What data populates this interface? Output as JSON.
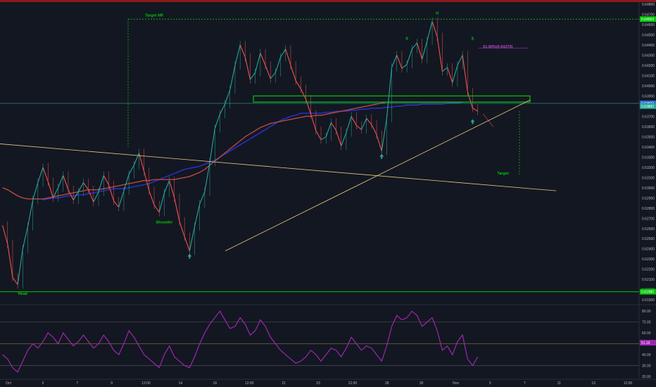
{
  "chart_data": {
    "type": "line",
    "title": "",
    "price_axis": {
      "ticks": [
        "0.64800",
        "0.64700",
        "0.64600",
        "0.64500",
        "0.64400",
        "0.64300",
        "0.64200",
        "0.64100",
        "0.64000",
        "0.63900",
        "0.63800",
        "0.63700",
        "0.63600",
        "0.63500",
        "0.63400",
        "0.63300",
        "0.63200",
        "0.63100",
        "0.63000",
        "0.62900",
        "0.62800",
        "0.62700",
        "0.62600",
        "0.62500",
        "0.62400",
        "0.62300",
        "0.62200",
        "0.62100",
        "0.62000",
        "0.61900"
      ],
      "range": [
        0.6186,
        0.6482
      ],
      "badges": [
        {
          "value": 0.64653,
          "label": "0.64653",
          "color": "#00c805"
        },
        {
          "value": 0.63827,
          "label": "0.63827",
          "color": "#2f6fd0"
        },
        {
          "value": 0.638,
          "label": "0.63800",
          "color": "#26a69a"
        },
        {
          "value": 0.6198,
          "label": "0.61980",
          "color": "#00c805"
        }
      ]
    },
    "time_axis": {
      "labels": [
        "Oct",
        "3",
        "7",
        "9",
        "12:00",
        "14",
        "16",
        "12:00",
        "21",
        "23",
        "12:00",
        "28",
        "30",
        "Nov",
        "5",
        "7",
        "11",
        "13",
        "12:00"
      ]
    },
    "price_series": [
      {
        "name": "price",
        "color": "#26a69a",
        "values": [
          0.6263,
          0.6245,
          0.6212,
          0.6205,
          0.624,
          0.6262,
          0.6288,
          0.6305,
          0.632,
          0.6306,
          0.629,
          0.63,
          0.6312,
          0.6298,
          0.6288,
          0.6296,
          0.6305,
          0.6298,
          0.6286,
          0.6296,
          0.6312,
          0.6303,
          0.6287,
          0.6281,
          0.6297,
          0.6313,
          0.6322,
          0.6334,
          0.6316,
          0.6297,
          0.6283,
          0.6276,
          0.6295,
          0.6307,
          0.629,
          0.6267,
          0.6252,
          0.6238,
          0.6262,
          0.6284,
          0.6296,
          0.6325,
          0.6358,
          0.6372,
          0.6382,
          0.6396,
          0.642,
          0.644,
          0.6428,
          0.6406,
          0.6413,
          0.6432,
          0.642,
          0.6407,
          0.6413,
          0.6428,
          0.6436,
          0.642,
          0.6405,
          0.6397,
          0.6387,
          0.6372,
          0.6356,
          0.6347,
          0.635,
          0.6364,
          0.6356,
          0.6341,
          0.6354,
          0.637,
          0.6361,
          0.6357,
          0.6368,
          0.6362,
          0.6352,
          0.6336,
          0.6368,
          0.6418,
          0.643,
          0.6417,
          0.6421,
          0.6436,
          0.6442,
          0.6426,
          0.6444,
          0.6463,
          0.6448,
          0.6414,
          0.6418,
          0.6403,
          0.642,
          0.643,
          0.6394,
          0.6378,
          0.6375
        ]
      },
      {
        "name": "ma-fast",
        "color": "#2a33d6",
        "values": [
          null,
          null,
          null,
          null,
          null,
          null,
          null,
          null,
          0.6288,
          0.6289,
          0.629,
          0.629,
          0.6291,
          0.6292,
          0.6292,
          0.6293,
          0.6293,
          0.6294,
          0.6295,
          0.6296,
          0.6297,
          0.6298,
          0.6299,
          0.6299,
          0.6299,
          0.63,
          0.6301,
          0.6302,
          0.6303,
          0.6304,
          0.6306,
          0.6308,
          0.631,
          0.6312,
          0.6314,
          0.6316,
          0.6318,
          0.6319,
          0.632,
          0.6321,
          0.6323,
          0.6325,
          0.6327,
          0.633,
          0.6333,
          0.6336,
          0.6339,
          0.6342,
          0.6345,
          0.6348,
          0.6351,
          0.6354,
          0.6357,
          0.636,
          0.6363,
          0.6366,
          0.6368,
          0.637,
          0.6371,
          0.6373,
          0.6373,
          0.6373,
          0.6373,
          0.6373,
          0.6374,
          0.6374,
          0.6375,
          0.6375,
          0.6375,
          0.6376,
          0.6376,
          0.6377,
          0.6377,
          0.6378,
          0.6378,
          0.6378,
          0.6379,
          0.6379,
          0.638,
          0.638,
          0.6381,
          0.6381,
          0.6381,
          0.6382,
          0.6382,
          0.6382,
          0.6382,
          0.6382,
          0.6383,
          0.6383,
          0.6383,
          0.6384,
          null,
          null,
          null
        ]
      },
      {
        "name": "ma-slow",
        "color": "#b84a3e",
        "values": [
          0.63,
          0.6298,
          0.6295,
          0.6292,
          0.629,
          0.6289,
          0.6289,
          0.6289,
          0.6289,
          0.629,
          0.6291,
          0.6292,
          0.6293,
          0.6294,
          0.6295,
          0.6296,
          0.6297,
          0.6298,
          0.6298,
          0.6298,
          0.6299,
          0.63,
          0.6301,
          0.6302,
          0.6303,
          0.6304,
          0.6305,
          0.6306,
          0.6307,
          0.6307,
          0.6308,
          0.6308,
          0.6308,
          0.6308,
          0.6308,
          0.6309,
          0.631,
          0.6311,
          0.6313,
          0.6315,
          0.6318,
          0.6322,
          0.6326,
          0.633,
          0.6334,
          0.6338,
          0.6342,
          0.6346,
          0.635,
          0.6353,
          0.6356,
          0.6359,
          0.6361,
          0.6363,
          0.6364,
          0.6365,
          0.6366,
          0.6367,
          0.6368,
          0.6369,
          0.637,
          0.637,
          0.6371,
          0.6371,
          0.6372,
          0.6373,
          0.6374,
          0.6375,
          0.6376,
          0.6377,
          0.6378,
          0.6379,
          0.638,
          0.6381,
          0.6382,
          0.6383,
          0.6384,
          0.6384,
          0.6384,
          0.6384,
          0.6384,
          0.6384,
          0.6384,
          0.6384,
          0.6384,
          0.6384,
          0.6384,
          0.6384,
          0.6384,
          0.6384,
          0.6384,
          0.6384,
          null,
          null,
          null
        ]
      }
    ],
    "annotations": [
      {
        "id": "target-nr",
        "label": "Target NR",
        "x": 30,
        "value": 0.6468
      },
      {
        "id": "h",
        "label": "H",
        "x": 86,
        "value": 0.647
      },
      {
        "id": "s-left",
        "label": "S",
        "x": 80,
        "value": 0.6445
      },
      {
        "id": "s-right",
        "label": "S",
        "x": 93,
        "value": 0.6445
      },
      {
        "id": "shoulder",
        "label": "Shoulder",
        "x": 32,
        "value": 0.6265
      },
      {
        "id": "head",
        "label": "Head",
        "x": 4,
        "value": 0.6195
      },
      {
        "id": "target",
        "label": "Target",
        "x": 99,
        "value": 0.6313
      },
      {
        "id": "fib",
        "label": "61.80%(0.64370)",
        "x": 98,
        "value": 0.6437
      }
    ],
    "rsi": {
      "ticks": [
        "80.00",
        "70.00",
        "60.00",
        "50.00",
        "40.00",
        "30.00",
        "20.00"
      ],
      "range": [
        18,
        84
      ],
      "levels": [
        70,
        50,
        30
      ],
      "current": {
        "value": 51,
        "label": "51.16"
      },
      "values": [
        40,
        36,
        28,
        24,
        34,
        44,
        50,
        46,
        52,
        60,
        56,
        50,
        60,
        54,
        48,
        52,
        58,
        52,
        46,
        50,
        58,
        52,
        44,
        40,
        50,
        62,
        56,
        48,
        40,
        36,
        32,
        28,
        40,
        48,
        38,
        34,
        30,
        28,
        38,
        50,
        60,
        68,
        74,
        80,
        72,
        64,
        66,
        74,
        68,
        58,
        62,
        72,
        66,
        56,
        50,
        44,
        40,
        36,
        32,
        34,
        38,
        44,
        40,
        34,
        40,
        46,
        44,
        38,
        46,
        56,
        50,
        44,
        48,
        46,
        40,
        34,
        48,
        66,
        76,
        72,
        74,
        80,
        76,
        66,
        70,
        74,
        62,
        44,
        48,
        40,
        52,
        58,
        36,
        30,
        38
      ]
    },
    "colors": {
      "background": "#131722",
      "up": "#26a69a",
      "down": "#ef5350",
      "neckline": "#00c805",
      "trend": "#e8c97a",
      "rsi": "#9c27b0"
    }
  }
}
